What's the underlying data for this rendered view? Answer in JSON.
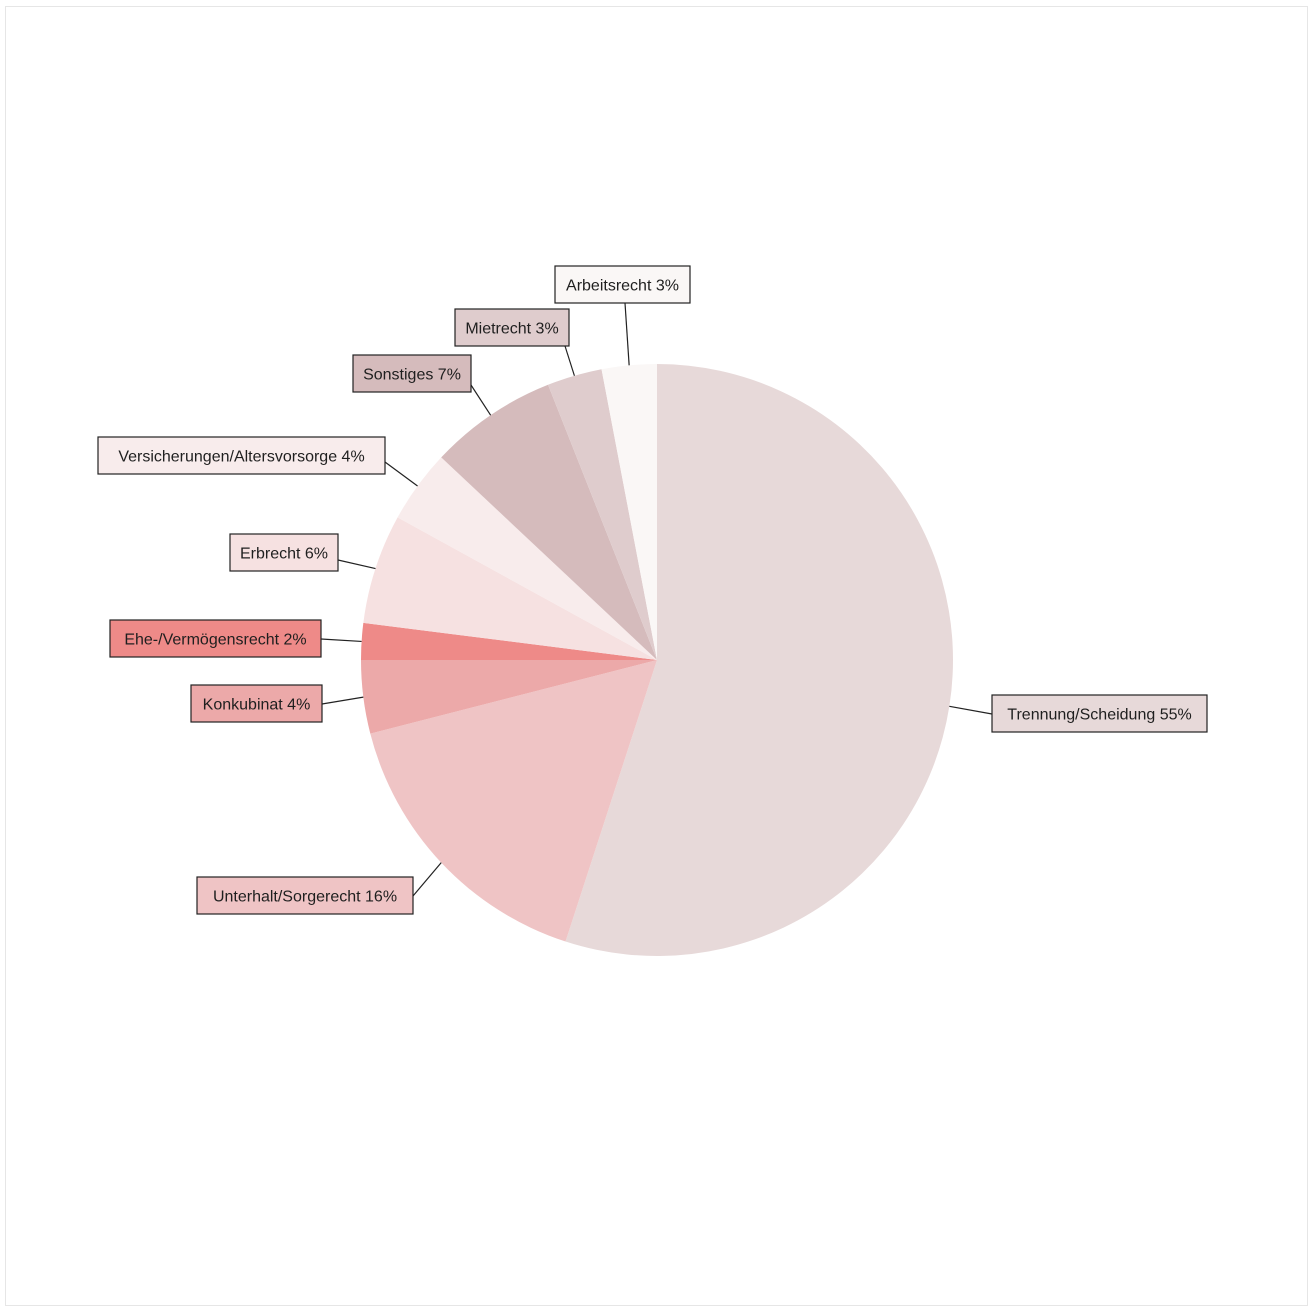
{
  "chart_data": {
    "type": "pie",
    "title": "",
    "start": "12 o'clock",
    "direction": "clockwise",
    "slices": [
      {
        "label": "Trennung/Scheidung 55%",
        "value": 55,
        "color": "#e7d9d9"
      },
      {
        "label": "Unterhalt/Sorgerecht 16%",
        "value": 16,
        "color": "#efc4c5"
      },
      {
        "label": "Konkubinat 4%",
        "value": 4,
        "color": "#eca9a9"
      },
      {
        "label": "Ehe-/Vermögensrecht 2%",
        "value": 2,
        "color": "#ee8a88"
      },
      {
        "label": "Erbrecht 6%",
        "value": 6,
        "color": "#f6e1e1"
      },
      {
        "label": "Versicherungen/Altersvorsorge  4%",
        "value": 4,
        "color": "#f8ecec"
      },
      {
        "label": "Sonstiges 7%",
        "value": 7,
        "color": "#d5bbbc"
      },
      {
        "label": "Mietrecht 3%",
        "value": 3,
        "color": "#dfcccd"
      },
      {
        "label": "Arbeitsrecht 3%",
        "value": 3,
        "color": "#faf7f6"
      }
    ]
  }
}
